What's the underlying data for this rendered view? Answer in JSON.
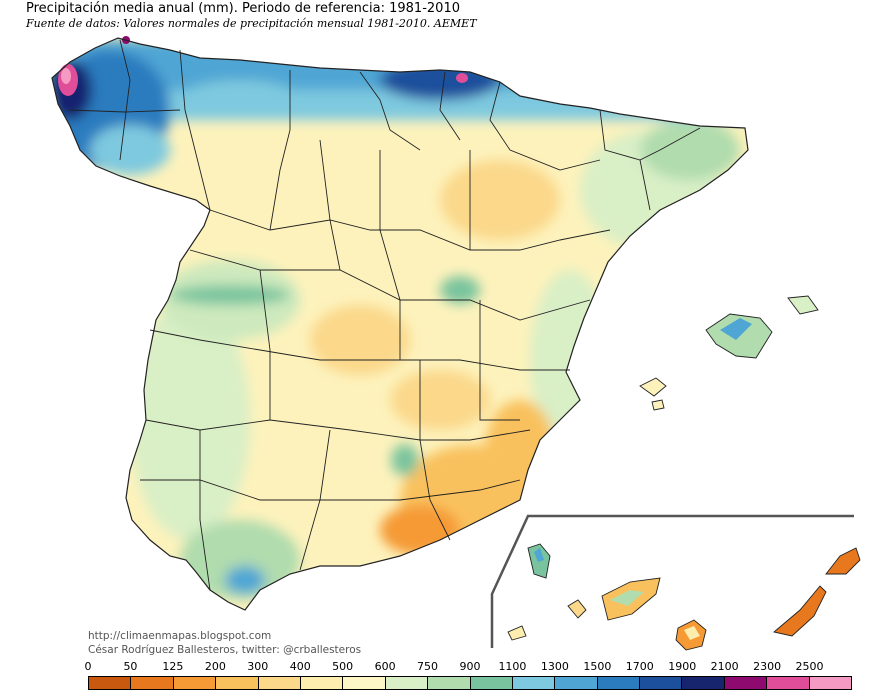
{
  "header": {
    "title": "Precipitación media anual (mm). Periodo de referencia: 1981-2010",
    "subtitle": "Fuente de datos: Valores normales de precipitación mensual 1981-2010. AEMET"
  },
  "credits": {
    "url": "http://climaenmapas.blogspot.com",
    "author": "César Rodríguez Ballesteros, twitter: @crballesteros"
  },
  "legend": {
    "unit": "mm",
    "ticks": [
      "0",
      "50",
      "125",
      "200",
      "300",
      "400",
      "500",
      "600",
      "750",
      "900",
      "1100",
      "1300",
      "1500",
      "1700",
      "1900",
      "2100",
      "2300",
      "2500"
    ],
    "colors": [
      "#c8590f",
      "#e8781e",
      "#f59a35",
      "#f9c15d",
      "#fbd88a",
      "#fdeeb0",
      "#fdf7c8",
      "#d9efc6",
      "#b0dcae",
      "#79c49e",
      "#7ec9df",
      "#4fa6d4",
      "#2b7bbf",
      "#1c4f9c",
      "#17246e",
      "#8e0a6f",
      "#e04e9a",
      "#f59ac2"
    ]
  },
  "map": {
    "region": "Spain (peninsula, Balearic and Canary Islands)",
    "inset": "Canary Islands"
  }
}
